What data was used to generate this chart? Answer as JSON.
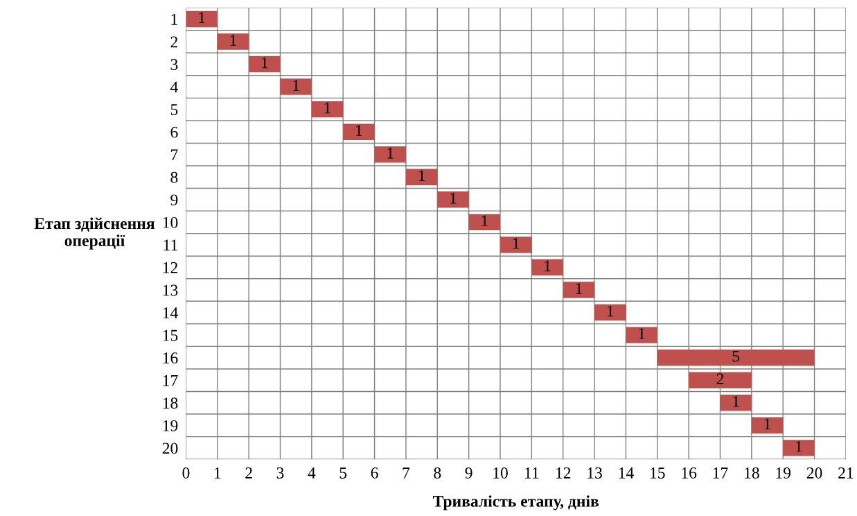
{
  "chart_data": {
    "type": "bar",
    "orientation": "horizontal",
    "xlabel": "Тривалість етапу, днів",
    "ylabel": "Етап здійснення\nоперації",
    "categories": [
      "1",
      "2",
      "3",
      "4",
      "5",
      "6",
      "7",
      "8",
      "9",
      "10",
      "11",
      "12",
      "13",
      "14",
      "15",
      "16",
      "17",
      "18",
      "19",
      "20"
    ],
    "base": [
      0,
      1,
      2,
      3,
      4,
      5,
      6,
      7,
      8,
      9,
      10,
      11,
      12,
      13,
      14,
      15,
      16,
      17,
      18,
      19
    ],
    "values": [
      1,
      1,
      1,
      1,
      1,
      1,
      1,
      1,
      1,
      1,
      1,
      1,
      1,
      1,
      1,
      5,
      2,
      1,
      1,
      1
    ],
    "color": "#c0504d",
    "data_labels": true,
    "grid": true,
    "xlim": [
      0,
      21
    ],
    "xticks": [
      0,
      1,
      2,
      3,
      4,
      5,
      6,
      7,
      8,
      9,
      10,
      11,
      12,
      13,
      14,
      15,
      16,
      17,
      18,
      19,
      20,
      21
    ]
  }
}
